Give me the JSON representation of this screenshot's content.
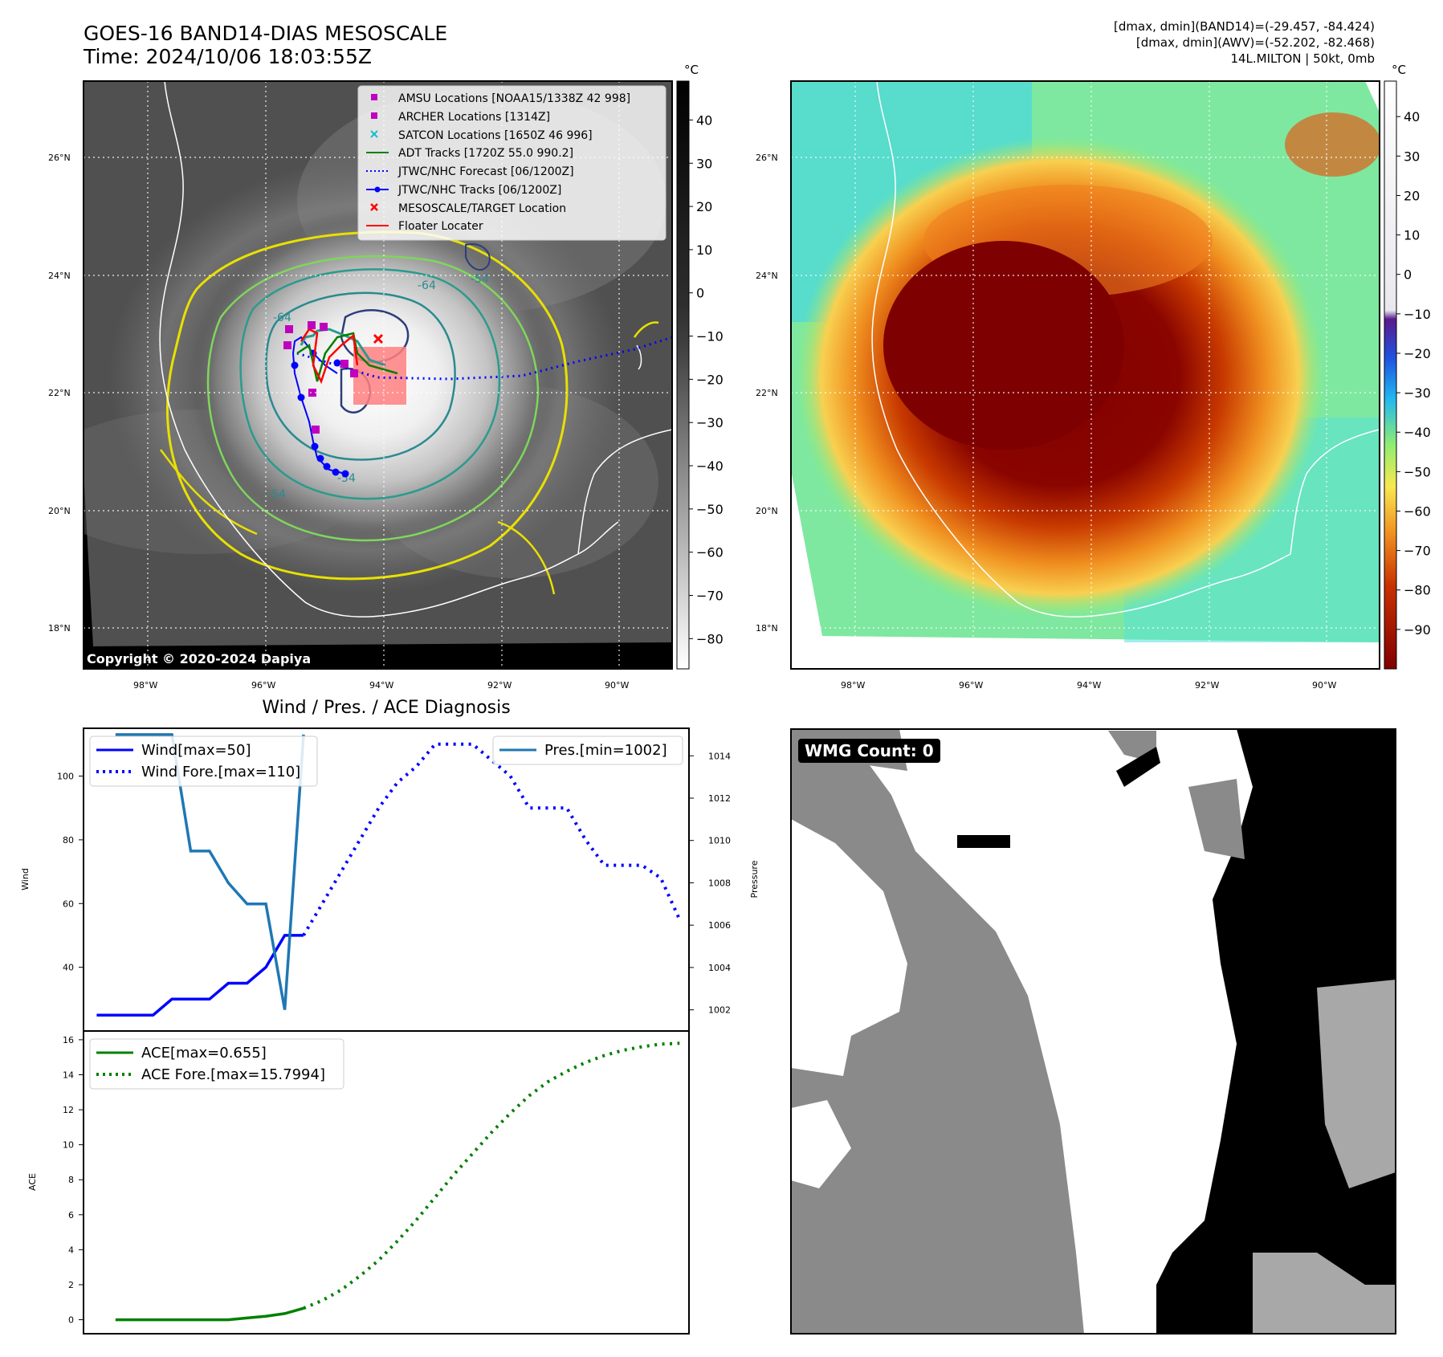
{
  "header": {
    "title_line1": "GOES-16 BAND14-DIAS MESOSCALE",
    "title_line2": "Time: 2024/10/06 18:03:55Z",
    "info_line1": "[dmax, dmin](BAND14)=(-29.457, -84.424)",
    "info_line2": "[dmax, dmin](AWV)=(-52.202, -82.468)",
    "info_line3": "14L.MILTON | 50kt, 0mb"
  },
  "map_axes": {
    "lat_labels": [
      "26°N",
      "24°N",
      "22°N",
      "20°N",
      "18°N"
    ],
    "lon_labels": [
      "98°W",
      "96°W",
      "94°W",
      "92°W",
      "90°W"
    ]
  },
  "ir_panel": {
    "copyright": "Copyright © 2020-2024 Dapiya",
    "colorbar_unit": "°C",
    "colorbar_ticks": [
      "40",
      "30",
      "20",
      "10",
      "0",
      "−10",
      "−20",
      "−30",
      "−40",
      "−50",
      "−60",
      "−70",
      "−80"
    ],
    "contour_labels": [
      "-54",
      "-64",
      "-54",
      "-64",
      "-54"
    ],
    "legend": [
      {
        "label": "AMSU Locations [NOAA15/1338Z 42 998]",
        "color": "#bf00bf"
      },
      {
        "label": "ARCHER Locations [1314Z]",
        "color": "#bf00bf"
      },
      {
        "label": "SATCON Locations [1650Z 46 996]",
        "color": "#17becf"
      },
      {
        "label": "ADT Tracks [1720Z 55.0 990.2]",
        "color": "#008000"
      },
      {
        "label": "JTWC/NHC Forecast [06/1200Z]",
        "color": "#0000ff"
      },
      {
        "label": "JTWC/NHC Tracks [06/1200Z]",
        "color": "#0000ff"
      },
      {
        "label": "MESOSCALE/TARGET Location",
        "color": "#ff0000"
      },
      {
        "label": "Floater Locater",
        "color": "#ff0000"
      }
    ]
  },
  "awv_panel": {
    "colorbar_unit": "°C",
    "colorbar_ticks": [
      "40",
      "30",
      "20",
      "10",
      "0",
      "−10",
      "−20",
      "−30",
      "−40",
      "−50",
      "−60",
      "−70",
      "−80",
      "−90"
    ]
  },
  "wmg_panel": {
    "badge": "WMG Count: 0"
  },
  "chart_data": [
    {
      "type": "line",
      "title": "Wind / Pres. / ACE Diagnosis",
      "xlabel": "",
      "ylabel": "Wind",
      "y2label": "Pressure",
      "ylim": [
        20,
        115
      ],
      "y2lim": [
        1001,
        1015.3
      ],
      "y_ticks": [
        "40",
        "60",
        "80",
        "100"
      ],
      "y2_ticks": [
        "1002",
        "1004",
        "1006",
        "1008",
        "1010",
        "1012",
        "1014"
      ],
      "series": [
        {
          "name": "Wind[max=50]",
          "axis": "left",
          "style": "solid",
          "color": "#0000ff",
          "x": [
            0,
            1,
            2,
            3,
            4,
            5,
            6,
            7,
            8,
            9,
            10,
            11
          ],
          "values": [
            25,
            25,
            25,
            25,
            30,
            30,
            30,
            35,
            35,
            40,
            50,
            50
          ]
        },
        {
          "name": "Wind Fore.[max=110]",
          "axis": "left",
          "style": "dotted",
          "color": "#0000ff",
          "x": [
            11,
            12,
            13,
            14,
            15,
            16,
            17,
            18,
            19,
            20,
            21,
            22,
            23,
            24,
            25,
            26,
            27,
            28,
            29,
            30,
            31
          ],
          "values": [
            50,
            60,
            70,
            80,
            90,
            98,
            103,
            110,
            110,
            110,
            105,
            100,
            90,
            90,
            90,
            80,
            72,
            72,
            72,
            68,
            55
          ]
        },
        {
          "name": "Pres.[min=1002]",
          "axis": "right",
          "style": "solid",
          "color": "#1f77b4",
          "x": [
            1,
            2,
            3,
            4,
            5,
            6,
            7,
            8,
            9,
            10,
            11
          ],
          "values": [
            1015,
            1015,
            1015,
            1015,
            1009.5,
            1009.5,
            1008,
            1007,
            1007,
            1002,
            1015
          ]
        }
      ]
    },
    {
      "type": "line",
      "xlabel": "",
      "ylabel": "ACE",
      "ylim": [
        -0.8,
        16.5
      ],
      "y_ticks": [
        "0",
        "2",
        "4",
        "6",
        "8",
        "10",
        "12",
        "14",
        "16"
      ],
      "series": [
        {
          "name": "ACE[max=0.655]",
          "style": "solid",
          "color": "#008000",
          "x": [
            1,
            2,
            3,
            4,
            5,
            6,
            7,
            8,
            9,
            10,
            11
          ],
          "values": [
            0,
            0,
            0,
            0,
            0,
            0,
            0,
            0.1,
            0.2,
            0.35,
            0.655
          ]
        },
        {
          "name": "ACE Fore.[max=15.7994]",
          "style": "dotted",
          "color": "#008000",
          "x": [
            11,
            12,
            13,
            14,
            15,
            16,
            17,
            18,
            19,
            20,
            21,
            22,
            23,
            24,
            25,
            26,
            27,
            28,
            29,
            30,
            31
          ],
          "values": [
            0.655,
            1.1,
            1.7,
            2.5,
            3.4,
            4.5,
            5.7,
            7.0,
            8.3,
            9.5,
            10.7,
            11.8,
            12.8,
            13.6,
            14.2,
            14.7,
            15.1,
            15.4,
            15.6,
            15.75,
            15.7994
          ]
        }
      ]
    }
  ]
}
